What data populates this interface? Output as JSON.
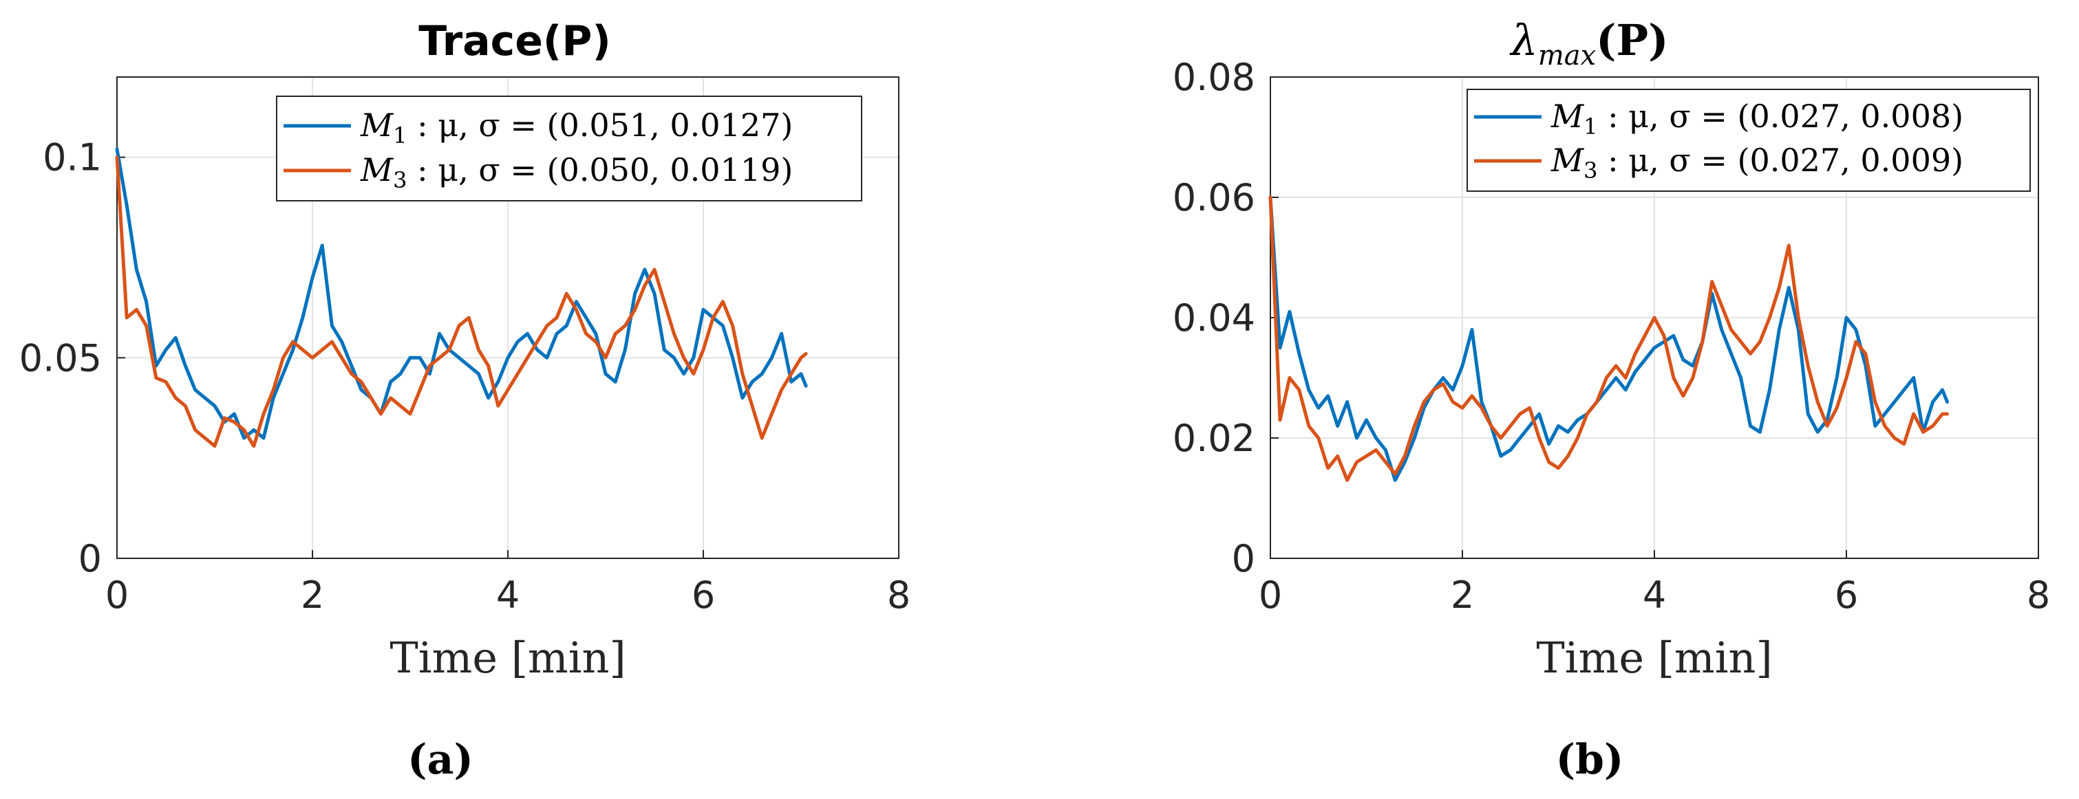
{
  "chart_data": [
    {
      "panel_label": "(a)",
      "type": "line",
      "title": "Trace(P)",
      "xlabel": "Time [min]",
      "ylabel": "",
      "xlim": [
        0,
        8
      ],
      "ylim": [
        0,
        0.12
      ],
      "xticks": [
        0,
        2,
        4,
        6,
        8
      ],
      "xtick_labels": [
        "0",
        "2",
        "4",
        "6",
        "8"
      ],
      "yticks": [
        0,
        0.05,
        0.1
      ],
      "ytick_labels": [
        "0",
        "0.05",
        "0.1"
      ],
      "grid": true,
      "legend_position": "top-right",
      "series": [
        {
          "name": "M1 : μ, σ = (0.051, 0.0127)",
          "color": "#0072BD",
          "x": [
            0,
            0.1,
            0.2,
            0.3,
            0.4,
            0.5,
            0.6,
            0.7,
            0.8,
            0.9,
            1.0,
            1.1,
            1.2,
            1.3,
            1.4,
            1.5,
            1.6,
            1.7,
            1.8,
            1.9,
            2.0,
            2.1,
            2.2,
            2.3,
            2.4,
            2.5,
            2.6,
            2.7,
            2.8,
            2.9,
            3.0,
            3.1,
            3.2,
            3.3,
            3.4,
            3.5,
            3.6,
            3.7,
            3.8,
            3.9,
            4.0,
            4.1,
            4.2,
            4.3,
            4.4,
            4.5,
            4.6,
            4.7,
            4.8,
            4.9,
            5.0,
            5.1,
            5.2,
            5.3,
            5.4,
            5.5,
            5.6,
            5.7,
            5.8,
            5.9,
            6.0,
            6.1,
            6.2,
            6.3,
            6.4,
            6.5,
            6.6,
            6.7,
            6.8,
            6.9,
            7.0,
            7.05
          ],
          "values": [
            0.102,
            0.088,
            0.072,
            0.064,
            0.048,
            0.052,
            0.055,
            0.048,
            0.042,
            0.04,
            0.038,
            0.034,
            0.036,
            0.03,
            0.032,
            0.03,
            0.04,
            0.046,
            0.052,
            0.06,
            0.07,
            0.078,
            0.058,
            0.054,
            0.048,
            0.042,
            0.04,
            0.036,
            0.044,
            0.046,
            0.05,
            0.05,
            0.046,
            0.056,
            0.052,
            0.05,
            0.048,
            0.046,
            0.04,
            0.044,
            0.05,
            0.054,
            0.056,
            0.052,
            0.05,
            0.056,
            0.058,
            0.064,
            0.06,
            0.056,
            0.046,
            0.044,
            0.052,
            0.066,
            0.072,
            0.066,
            0.052,
            0.05,
            0.046,
            0.05,
            0.062,
            0.06,
            0.058,
            0.05,
            0.04,
            0.044,
            0.046,
            0.05,
            0.056,
            0.044,
            0.046,
            0.043
          ]
        },
        {
          "name": "M3 : μ, σ = (0.050, 0.0119)",
          "color": "#D95319",
          "x": [
            0,
            0.1,
            0.2,
            0.3,
            0.4,
            0.5,
            0.6,
            0.7,
            0.8,
            0.9,
            1.0,
            1.1,
            1.2,
            1.3,
            1.4,
            1.5,
            1.6,
            1.7,
            1.8,
            1.9,
            2.0,
            2.1,
            2.2,
            2.3,
            2.4,
            2.5,
            2.6,
            2.7,
            2.8,
            2.9,
            3.0,
            3.1,
            3.2,
            3.3,
            3.4,
            3.5,
            3.6,
            3.7,
            3.8,
            3.9,
            4.0,
            4.1,
            4.2,
            4.3,
            4.4,
            4.5,
            4.6,
            4.7,
            4.8,
            4.9,
            5.0,
            5.1,
            5.2,
            5.3,
            5.4,
            5.5,
            5.6,
            5.7,
            5.8,
            5.9,
            6.0,
            6.1,
            6.2,
            6.3,
            6.4,
            6.5,
            6.6,
            6.7,
            6.8,
            6.9,
            7.0,
            7.05
          ],
          "values": [
            0.1,
            0.06,
            0.062,
            0.058,
            0.045,
            0.044,
            0.04,
            0.038,
            0.032,
            0.03,
            0.028,
            0.035,
            0.034,
            0.032,
            0.028,
            0.036,
            0.042,
            0.05,
            0.054,
            0.052,
            0.05,
            0.052,
            0.054,
            0.05,
            0.046,
            0.044,
            0.04,
            0.036,
            0.04,
            0.038,
            0.036,
            0.042,
            0.048,
            0.05,
            0.052,
            0.058,
            0.06,
            0.052,
            0.048,
            0.038,
            0.042,
            0.046,
            0.05,
            0.054,
            0.058,
            0.06,
            0.066,
            0.062,
            0.056,
            0.054,
            0.05,
            0.056,
            0.058,
            0.062,
            0.068,
            0.072,
            0.064,
            0.056,
            0.05,
            0.046,
            0.052,
            0.06,
            0.064,
            0.058,
            0.046,
            0.038,
            0.03,
            0.036,
            0.042,
            0.046,
            0.05,
            0.051
          ]
        }
      ]
    },
    {
      "panel_label": "(b)",
      "type": "line",
      "title": "λmax(P)",
      "xlabel": "Time [min]",
      "ylabel": "",
      "xlim": [
        0,
        8
      ],
      "ylim": [
        0,
        0.08
      ],
      "xticks": [
        0,
        2,
        4,
        6,
        8
      ],
      "xtick_labels": [
        "0",
        "2",
        "4",
        "6",
        "8"
      ],
      "yticks": [
        0,
        0.02,
        0.04,
        0.06,
        0.08
      ],
      "ytick_labels": [
        "0",
        "0.02",
        "0.04",
        "0.06",
        "0.08"
      ],
      "grid": true,
      "legend_position": "top-right",
      "series": [
        {
          "name": "M1 : μ, σ = (0.027, 0.008)",
          "color": "#0072BD",
          "x": [
            0,
            0.1,
            0.2,
            0.3,
            0.4,
            0.5,
            0.6,
            0.7,
            0.8,
            0.9,
            1.0,
            1.1,
            1.2,
            1.3,
            1.4,
            1.5,
            1.6,
            1.7,
            1.8,
            1.9,
            2.0,
            2.1,
            2.2,
            2.3,
            2.4,
            2.5,
            2.6,
            2.7,
            2.8,
            2.9,
            3.0,
            3.1,
            3.2,
            3.3,
            3.4,
            3.5,
            3.6,
            3.7,
            3.8,
            3.9,
            4.0,
            4.1,
            4.2,
            4.3,
            4.4,
            4.5,
            4.6,
            4.7,
            4.8,
            4.9,
            5.0,
            5.1,
            5.2,
            5.3,
            5.4,
            5.5,
            5.6,
            5.7,
            5.8,
            5.9,
            6.0,
            6.1,
            6.2,
            6.3,
            6.4,
            6.5,
            6.6,
            6.7,
            6.8,
            6.9,
            7.0,
            7.05
          ],
          "values": [
            0.06,
            0.035,
            0.041,
            0.034,
            0.028,
            0.025,
            0.027,
            0.022,
            0.026,
            0.02,
            0.023,
            0.02,
            0.018,
            0.013,
            0.016,
            0.02,
            0.025,
            0.028,
            0.03,
            0.028,
            0.032,
            0.038,
            0.026,
            0.022,
            0.017,
            0.018,
            0.02,
            0.022,
            0.024,
            0.019,
            0.022,
            0.021,
            0.023,
            0.024,
            0.026,
            0.028,
            0.03,
            0.028,
            0.031,
            0.033,
            0.035,
            0.036,
            0.037,
            0.033,
            0.032,
            0.036,
            0.044,
            0.038,
            0.034,
            0.03,
            0.022,
            0.021,
            0.028,
            0.038,
            0.045,
            0.038,
            0.024,
            0.021,
            0.023,
            0.03,
            0.04,
            0.038,
            0.032,
            0.022,
            0.024,
            0.026,
            0.028,
            0.03,
            0.021,
            0.026,
            0.028,
            0.026
          ]
        },
        {
          "name": "M3 : μ, σ = (0.027, 0.009)",
          "color": "#D95319",
          "x": [
            0,
            0.1,
            0.2,
            0.3,
            0.4,
            0.5,
            0.6,
            0.7,
            0.8,
            0.9,
            1.0,
            1.1,
            1.2,
            1.3,
            1.4,
            1.5,
            1.6,
            1.7,
            1.8,
            1.9,
            2.0,
            2.1,
            2.2,
            2.3,
            2.4,
            2.5,
            2.6,
            2.7,
            2.8,
            2.9,
            3.0,
            3.1,
            3.2,
            3.3,
            3.4,
            3.5,
            3.6,
            3.7,
            3.8,
            3.9,
            4.0,
            4.1,
            4.2,
            4.3,
            4.4,
            4.5,
            4.6,
            4.7,
            4.8,
            4.9,
            5.0,
            5.1,
            5.2,
            5.3,
            5.4,
            5.5,
            5.6,
            5.7,
            5.8,
            5.9,
            6.0,
            6.1,
            6.2,
            6.3,
            6.4,
            6.5,
            6.6,
            6.7,
            6.8,
            6.9,
            7.0,
            7.05
          ],
          "values": [
            0.06,
            0.023,
            0.03,
            0.028,
            0.022,
            0.02,
            0.015,
            0.017,
            0.013,
            0.016,
            0.017,
            0.018,
            0.016,
            0.014,
            0.017,
            0.022,
            0.026,
            0.028,
            0.029,
            0.026,
            0.025,
            0.027,
            0.025,
            0.022,
            0.02,
            0.022,
            0.024,
            0.025,
            0.02,
            0.016,
            0.015,
            0.017,
            0.02,
            0.024,
            0.026,
            0.03,
            0.032,
            0.03,
            0.034,
            0.037,
            0.04,
            0.037,
            0.03,
            0.027,
            0.03,
            0.036,
            0.046,
            0.042,
            0.038,
            0.036,
            0.034,
            0.036,
            0.04,
            0.045,
            0.052,
            0.04,
            0.032,
            0.026,
            0.022,
            0.025,
            0.03,
            0.036,
            0.034,
            0.026,
            0.022,
            0.02,
            0.019,
            0.024,
            0.021,
            0.022,
            0.024,
            0.024
          ]
        }
      ]
    }
  ],
  "panels": [
    {
      "label": "(a)",
      "title": "Trace(P)",
      "xlabel": "Time [min]",
      "legend": [
        {
          "sym": "M",
          "sub": "1",
          "text": " : μ, σ = (0.051, 0.0127)"
        },
        {
          "sym": "M",
          "sub": "3",
          "text": " : μ, σ = (0.050, 0.0119)"
        }
      ]
    },
    {
      "label": "(b)",
      "title_sym": "λ",
      "title_sub": "max",
      "title_rest": "(P)",
      "xlabel": "Time [min]",
      "legend": [
        {
          "sym": "M",
          "sub": "1",
          "text": " : μ, σ = (0.027, 0.008)"
        },
        {
          "sym": "M",
          "sub": "3",
          "text": " : μ, σ = (0.027, 0.009)"
        }
      ]
    }
  ]
}
